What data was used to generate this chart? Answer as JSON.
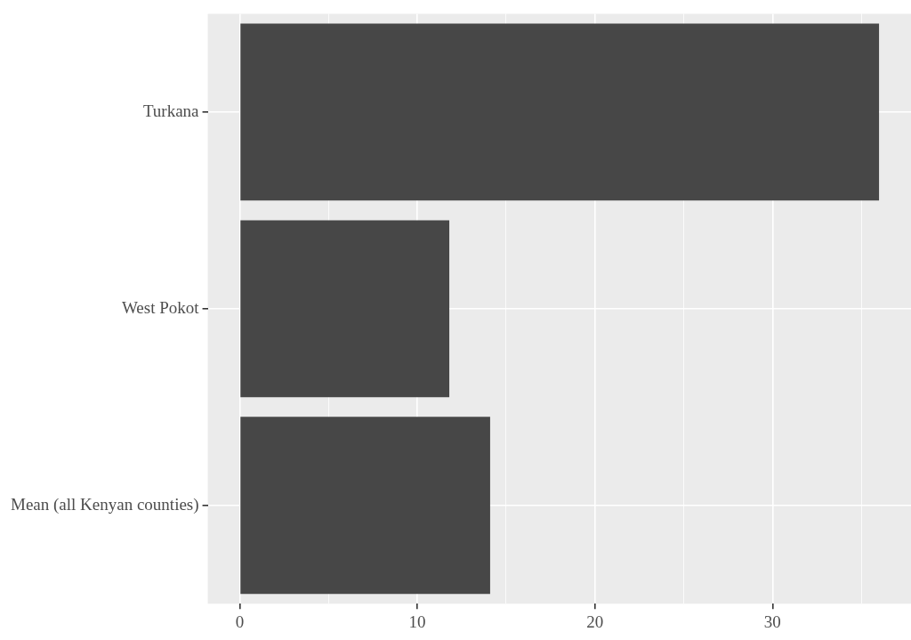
{
  "chart_data": {
    "type": "bar",
    "orientation": "horizontal",
    "categories": [
      "Turkana",
      "West Pokot",
      "Mean (all Kenyan counties)"
    ],
    "values": [
      36.0,
      11.8,
      14.1
    ],
    "color": "#474747",
    "xlim": [
      -1.8,
      37.8
    ],
    "xticks": [
      0,
      {
        "value": 5,
        "label": null
      },
      10,
      {
        "value": 15,
        "label": null
      },
      20,
      {
        "value": 25,
        "label": null
      },
      30,
      {
        "value": 35,
        "label": null
      }
    ],
    "grid": true,
    "legend": false
  }
}
